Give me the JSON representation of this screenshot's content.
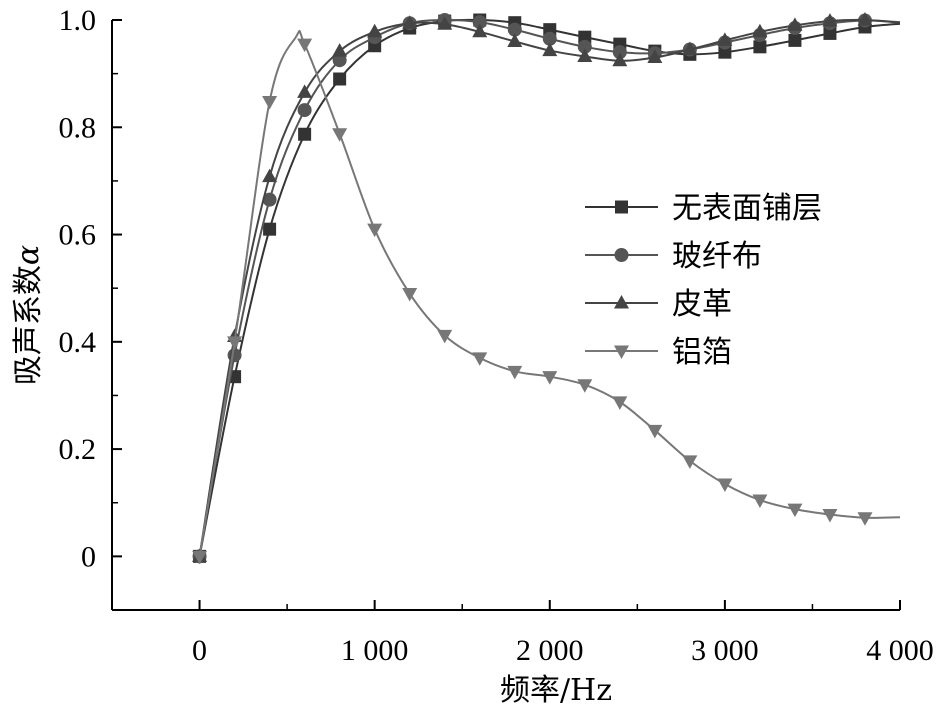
{
  "chart_data": {
    "type": "line",
    "xlabel": "频率/Hz",
    "ylabel_main": "吸声系数",
    "ylabel_symbol": "α",
    "xlim": [
      -500,
      4000
    ],
    "ylim": [
      -0.1,
      1.0
    ],
    "x_ticks": [
      0,
      1000,
      2000,
      3000,
      4000
    ],
    "x_tick_labels": [
      "0",
      "1 000",
      "2 000",
      "3 000",
      "4 000"
    ],
    "y_ticks": [
      0,
      0.2,
      0.4,
      0.6,
      0.8,
      1.0
    ],
    "y_tick_labels": [
      "0",
      "0.2",
      "0.4",
      "0.6",
      "0.8",
      "1.0"
    ],
    "grid": false,
    "legend_position": "right",
    "series": [
      {
        "name": "无表面铺层",
        "marker": "square",
        "color": "#333333",
        "points": [
          [
            0,
            0.0
          ],
          [
            200,
            0.335
          ],
          [
            400,
            0.61
          ],
          [
            600,
            0.787
          ],
          [
            800,
            0.89
          ],
          [
            1000,
            0.952
          ],
          [
            1200,
            0.985
          ],
          [
            1400,
            0.998
          ],
          [
            1600,
            1.0
          ],
          [
            1800,
            0.995
          ],
          [
            2000,
            0.982
          ],
          [
            2200,
            0.968
          ],
          [
            2400,
            0.955
          ],
          [
            2600,
            0.942
          ],
          [
            2800,
            0.936
          ],
          [
            3000,
            0.94
          ],
          [
            3200,
            0.95
          ],
          [
            3400,
            0.962
          ],
          [
            3600,
            0.975
          ],
          [
            3800,
            0.987
          ],
          [
            4000,
            0.993
          ]
        ]
      },
      {
        "name": "玻纤布",
        "marker": "circle",
        "color": "#555555",
        "points": [
          [
            0,
            0.0
          ],
          [
            200,
            0.375
          ],
          [
            400,
            0.665
          ],
          [
            600,
            0.832
          ],
          [
            800,
            0.925
          ],
          [
            1000,
            0.968
          ],
          [
            1200,
            0.994
          ],
          [
            1400,
            1.0
          ],
          [
            1600,
            0.996
          ],
          [
            1800,
            0.982
          ],
          [
            2000,
            0.965
          ],
          [
            2200,
            0.95
          ],
          [
            2400,
            0.94
          ],
          [
            2600,
            0.938
          ],
          [
            2800,
            0.945
          ],
          [
            3000,
            0.958
          ],
          [
            3200,
            0.972
          ],
          [
            3400,
            0.985
          ],
          [
            3600,
            0.994
          ],
          [
            3800,
            0.999
          ],
          [
            4000,
            0.996
          ]
        ]
      },
      {
        "name": "皮革",
        "marker": "triangle-up",
        "color": "#444444",
        "points": [
          [
            0,
            0.0
          ],
          [
            200,
            0.41
          ],
          [
            400,
            0.708
          ],
          [
            600,
            0.865
          ],
          [
            800,
            0.942
          ],
          [
            1000,
            0.978
          ],
          [
            1200,
            0.994
          ],
          [
            1400,
            0.992
          ],
          [
            1600,
            0.978
          ],
          [
            1800,
            0.96
          ],
          [
            2000,
            0.943
          ],
          [
            2200,
            0.932
          ],
          [
            2400,
            0.924
          ],
          [
            2600,
            0.93
          ],
          [
            2800,
            0.945
          ],
          [
            3000,
            0.962
          ],
          [
            3200,
            0.978
          ],
          [
            3400,
            0.99
          ],
          [
            3600,
            0.998
          ],
          [
            3800,
            1.0
          ],
          [
            4000,
            0.995
          ]
        ]
      },
      {
        "name": "铝箔",
        "marker": "triangle-down",
        "color": "#777777",
        "points": [
          [
            0,
            0.0
          ],
          [
            200,
            0.4
          ],
          [
            400,
            0.848
          ],
          [
            550,
            0.968
          ],
          [
            600,
            0.955
          ],
          [
            800,
            0.788
          ],
          [
            1000,
            0.61
          ],
          [
            1200,
            0.49
          ],
          [
            1400,
            0.412
          ],
          [
            1600,
            0.37
          ],
          [
            1800,
            0.345
          ],
          [
            2000,
            0.335
          ],
          [
            2200,
            0.32
          ],
          [
            2400,
            0.288
          ],
          [
            2600,
            0.235
          ],
          [
            2800,
            0.178
          ],
          [
            3000,
            0.135
          ],
          [
            3200,
            0.105
          ],
          [
            3400,
            0.088
          ],
          [
            3600,
            0.078
          ],
          [
            3800,
            0.072
          ],
          [
            4000,
            0.073
          ]
        ]
      }
    ]
  }
}
